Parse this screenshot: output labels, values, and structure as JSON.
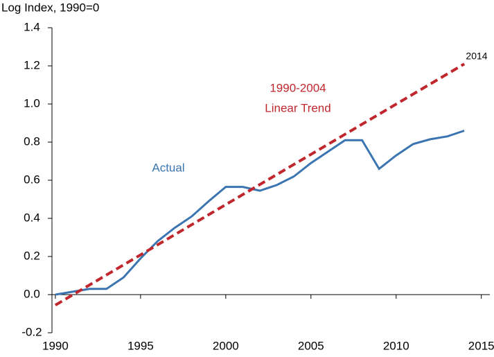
{
  "chart_data": {
    "type": "line",
    "y_label": "Log Index, 1990=0",
    "x": [
      1990,
      1991,
      1992,
      1993,
      1994,
      1995,
      1996,
      1997,
      1998,
      1999,
      2000,
      2001,
      2002,
      2003,
      2004,
      2005,
      2006,
      2007,
      2008,
      2009,
      2010,
      2011,
      2012,
      2013,
      2014
    ],
    "series": [
      {
        "name": "Actual",
        "color": "#3b75b1",
        "dashed": false,
        "values": [
          0.0,
          0.015,
          0.03,
          0.03,
          0.09,
          0.19,
          0.28,
          0.35,
          0.41,
          0.49,
          0.565,
          0.565,
          0.545,
          0.575,
          0.62,
          0.69,
          0.75,
          0.81,
          0.81,
          0.66,
          0.73,
          0.79,
          0.815,
          0.83,
          0.86
        ]
      },
      {
        "name": "1990-2004 Linear Trend",
        "color": "#c0272d",
        "dashed": true,
        "x": [
          1990,
          2014
        ],
        "values": [
          -0.055,
          1.21
        ]
      }
    ],
    "annotations": {
      "actual": "Actual",
      "trend_line1": "1990-2004",
      "trend_line2": "Linear Trend",
      "end": "2014"
    },
    "xlim": [
      1989.8,
      2015.5
    ],
    "xticks": [
      1990,
      1995,
      2000,
      2005,
      2010,
      2015
    ],
    "ylim": [
      -0.2,
      1.4
    ],
    "yticks": [
      {
        "value": -0.2,
        "label": "-0.2"
      },
      {
        "value": 0,
        "label": "0.0"
      },
      {
        "value": 0.2,
        "label": "0.2"
      },
      {
        "value": 0.4,
        "label": "0.4"
      },
      {
        "value": 0.6,
        "label": "0.6"
      },
      {
        "value": 0.8,
        "label": "0.8"
      },
      {
        "value": 1.0,
        "label": "1.0"
      },
      {
        "value": 1.2,
        "label": "1.2"
      },
      {
        "value": 1.4,
        "label": "1.4"
      }
    ]
  }
}
